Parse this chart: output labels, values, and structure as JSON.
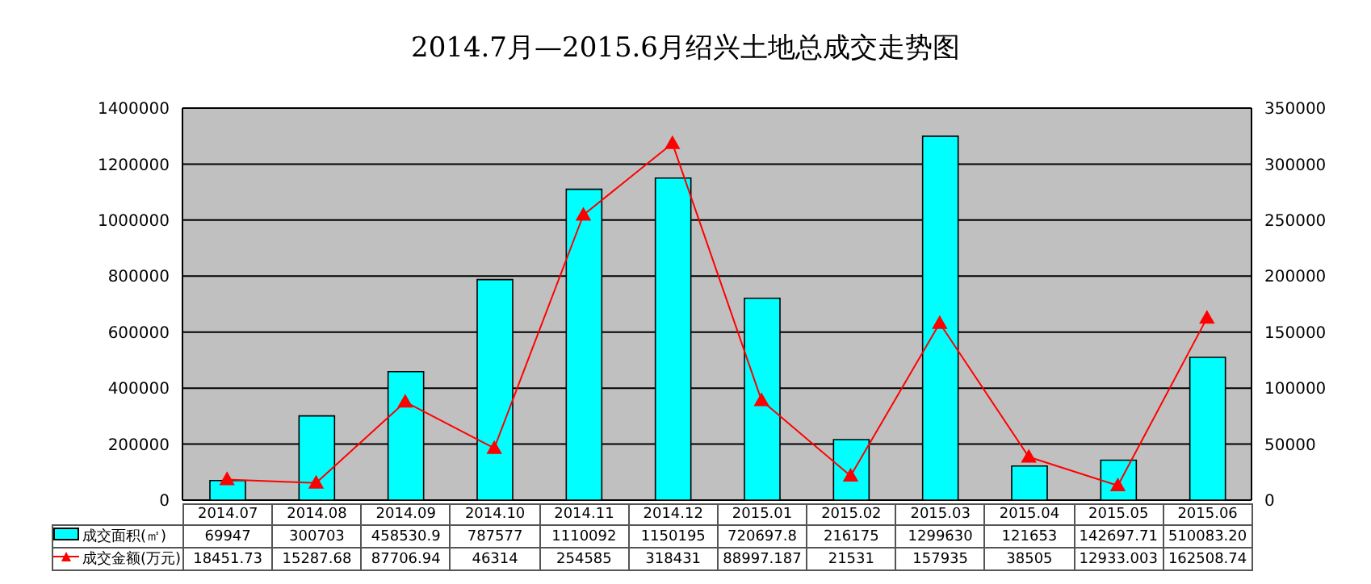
{
  "chart_data": {
    "type": "bar",
    "title": "2014.7月—2015.6月绍兴土地总成交走势图",
    "categories": [
      "2014.07",
      "2014.08",
      "2014.09",
      "2014.10",
      "2014.11",
      "2014.12",
      "2015.01",
      "2015.02",
      "2015.03",
      "2015.04",
      "2015.05",
      "2015.06"
    ],
    "series": [
      {
        "name": "成交面积(㎡)",
        "color": "#00ffff",
        "values": [
          69947,
          300703,
          458530.9,
          787577,
          1110092,
          1150195,
          720697.8,
          216175,
          1299630,
          121653,
          142697.71,
          510083.2
        ],
        "value_labels": [
          "69947",
          "300703",
          "458530.9",
          "787577",
          "1110092",
          "1150195",
          "720697.8",
          "216175",
          "1299630",
          "121653",
          "142697.71",
          "510083.20"
        ]
      },
      {
        "name": "成交金额(万元)",
        "type": "line",
        "axis": "y2",
        "color": "#ff0000",
        "marker": "triangle",
        "values": [
          18451.73,
          15287.68,
          87706.94,
          46314,
          254585,
          318431,
          88997.187,
          21531,
          157935,
          38505,
          12933.003,
          162508.74
        ],
        "value_labels": [
          "18451.73",
          "15287.68",
          "87706.94",
          "46314",
          "254585",
          "318431",
          "88997.187",
          "21531",
          "157935",
          "38505",
          "12933.003",
          "162508.74"
        ]
      }
    ],
    "ylim": [
      0,
      1400000
    ],
    "yticks": [
      0,
      200000,
      400000,
      600000,
      800000,
      1000000,
      1200000,
      1400000
    ],
    "y2lim": [
      0,
      350000
    ],
    "y2ticks": [
      0,
      50000,
      100000,
      150000,
      200000,
      250000,
      300000,
      350000
    ],
    "grid": "y",
    "legend": "bottom"
  }
}
